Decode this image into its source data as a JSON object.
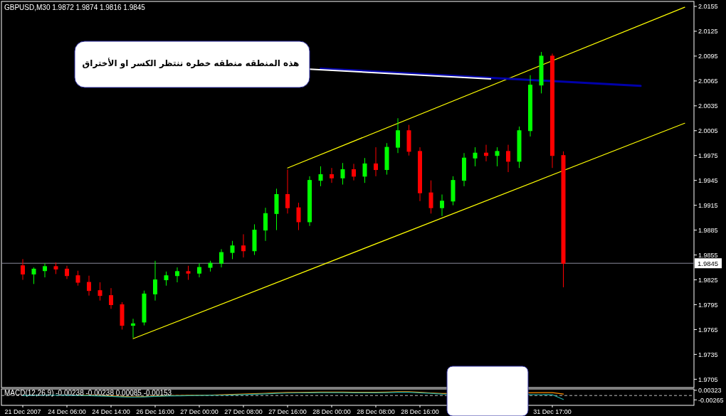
{
  "chart_data": [
    {
      "type": "candlestick",
      "title": "GBPUSD,M30 1.9872 1.9874 1.9816 1.9845",
      "tick_labels": "y",
      "categories": [
        null,
        null,
        null,
        null,
        null,
        null,
        null,
        null,
        null,
        null,
        null,
        null,
        null,
        null,
        null,
        null,
        null,
        null,
        null,
        null,
        null,
        null,
        null,
        null,
        null,
        null,
        null,
        null,
        null,
        null,
        null,
        null,
        null,
        null,
        null,
        null,
        null,
        null,
        null,
        null,
        null,
        null,
        null,
        null,
        null,
        null,
        null,
        null,
        null,
        null,
        null,
        null,
        null,
        null,
        null,
        null,
        null,
        null,
        null,
        null,
        null
      ],
      "ohlc": [
        [
          1.9842,
          1.985,
          1.9825,
          1.9832
        ],
        [
          1.9832,
          1.984,
          1.982,
          1.9838
        ],
        [
          1.9836,
          1.9845,
          1.9828,
          1.9841
        ],
        [
          1.9841,
          1.9846,
          1.9832,
          1.9838
        ],
        [
          1.9838,
          1.9842,
          1.9826,
          1.983
        ],
        [
          1.983,
          1.9836,
          1.9818,
          1.9822
        ],
        [
          1.9822,
          1.983,
          1.9806,
          1.9812
        ],
        [
          1.9812,
          1.9822,
          1.98,
          1.9806
        ],
        [
          1.9806,
          1.9815,
          1.979,
          1.9795
        ],
        [
          1.9795,
          1.9798,
          1.9765,
          1.977
        ],
        [
          1.977,
          1.9778,
          1.9755,
          1.9772
        ],
        [
          1.9774,
          1.9812,
          1.977,
          1.9808
        ],
        [
          1.9808,
          1.9848,
          1.98,
          1.9825
        ],
        [
          1.9825,
          1.9835,
          1.9818,
          1.983
        ],
        [
          1.983,
          1.984,
          1.9822,
          1.9835
        ],
        [
          1.9835,
          1.9842,
          1.9825,
          1.9833
        ],
        [
          1.9833,
          1.9845,
          1.9828,
          1.984
        ],
        [
          1.984,
          1.9848,
          1.9835,
          1.9845
        ],
        [
          1.9845,
          1.9862,
          1.984,
          1.9858
        ],
        [
          1.9858,
          1.9872,
          1.985,
          1.9866
        ],
        [
          1.9866,
          1.988,
          1.9852,
          1.986
        ],
        [
          1.986,
          1.9892,
          1.9855,
          1.9885
        ],
        [
          1.9885,
          1.9912,
          1.9872,
          1.9905
        ],
        [
          1.9905,
          1.9935,
          1.9885,
          1.9928
        ],
        [
          1.9928,
          1.9958,
          1.9905,
          1.9912
        ],
        [
          1.9912,
          1.9918,
          1.9885,
          1.9895
        ],
        [
          1.9895,
          1.995,
          1.989,
          1.9945
        ],
        [
          1.9945,
          1.9962,
          1.9938,
          1.9952
        ],
        [
          1.9952,
          1.996,
          1.9942,
          1.9948
        ],
        [
          1.9948,
          1.9966,
          1.994,
          1.9958
        ],
        [
          1.9958,
          1.9965,
          1.9945,
          1.995
        ],
        [
          1.995,
          1.9972,
          1.9942,
          1.9965
        ],
        [
          1.9965,
          1.9985,
          1.995,
          1.9958
        ],
        [
          1.9958,
          1.999,
          1.9952,
          1.9985
        ],
        [
          1.9985,
          2.002,
          1.9978,
          2.0005
        ],
        [
          2.0005,
          2.0012,
          1.9975,
          1.998
        ],
        [
          1.998,
          1.9985,
          1.992,
          1.993
        ],
        [
          1.993,
          1.9945,
          1.9905,
          1.9912
        ],
        [
          1.9912,
          1.9928,
          1.9902,
          1.992
        ],
        [
          1.992,
          1.995,
          1.9915,
          1.9945
        ],
        [
          1.9945,
          1.9978,
          1.9938,
          1.9972
        ],
        [
          1.9972,
          1.9985,
          1.9962,
          1.9978
        ],
        [
          1.9978,
          1.9988,
          1.9968,
          1.9975
        ],
        [
          1.9975,
          1.9985,
          1.9962,
          1.998
        ],
        [
          1.998,
          1.9988,
          1.9955,
          1.9968
        ],
        [
          1.9968,
          2.001,
          1.996,
          2.0005
        ],
        [
          2.0005,
          2.0072,
          1.9998,
          2.006
        ],
        [
          2.006,
          2.01,
          2.005,
          2.0095
        ],
        [
          2.0095,
          2.0098,
          1.996,
          1.9975
        ],
        [
          1.9975,
          1.998,
          1.9816,
          1.9845
        ],
        null,
        null,
        null,
        null,
        null,
        null,
        null,
        null,
        null,
        null,
        null
      ],
      "colors": [
        "#ff0000",
        "#00ff00",
        "#00ff00",
        "#ff0000",
        "#ff0000",
        "#ff0000",
        "#ff0000",
        "#ff0000",
        "#ff0000",
        "#ff0000",
        "#00ff00",
        "#00ff00",
        "#00ff00",
        "#00ff00",
        "#00ff00",
        "#ff0000",
        "#00ff00",
        "#00ff00",
        "#00ff00",
        "#00ff00",
        "#ff0000",
        "#00ff00",
        "#00ff00",
        "#00ff00",
        "#ff0000",
        "#ff0000",
        "#00ff00",
        "#00ff00",
        "#ff0000",
        "#00ff00",
        "#ff0000",
        "#00ff00",
        "#ff0000",
        "#00ff00",
        "#00ff00",
        "#ff0000",
        "#ff0000",
        "#ff0000",
        "#00ff00",
        "#00ff00",
        "#00ff00",
        "#00ff00",
        "#ff0000",
        "#00ff00",
        "#ff0000",
        "#00ff00",
        "#00ff00",
        "#00ff00",
        "#ff0000",
        "#ff0000",
        null,
        null,
        null,
        null,
        null,
        null,
        null,
        null,
        null,
        null,
        null
      ],
      "series": [
        {
          "type": "line",
          "color": "#ffff00",
          "values": [
            null,
            null,
            null,
            null,
            null,
            null,
            null,
            null,
            null,
            null,
            1.9754,
            null,
            null,
            null,
            null,
            null,
            null,
            null,
            null,
            null,
            null,
            null,
            null,
            null,
            null,
            null,
            null,
            null,
            null,
            null,
            null,
            null,
            null,
            null,
            null,
            null,
            null,
            null,
            null,
            null,
            null,
            null,
            null,
            null,
            null,
            null,
            null,
            null,
            null,
            null,
            null,
            null,
            null,
            null,
            null,
            null,
            null,
            null,
            null,
            null,
            2.0014
          ]
        },
        {
          "type": "line",
          "color": "#ffff00",
          "values": [
            null,
            null,
            null,
            null,
            null,
            null,
            null,
            null,
            null,
            null,
            null,
            null,
            null,
            null,
            null,
            null,
            null,
            null,
            null,
            null,
            null,
            null,
            null,
            null,
            1.996,
            null,
            null,
            null,
            null,
            null,
            null,
            null,
            null,
            null,
            null,
            null,
            null,
            null,
            null,
            null,
            null,
            null,
            null,
            null,
            null,
            null,
            null,
            null,
            null,
            null,
            null,
            null,
            null,
            null,
            null,
            null,
            null,
            null,
            null,
            null,
            2.0154
          ]
        },
        {
          "type": "line",
          "color": "#0000aa",
          "values": [
            null,
            null,
            null,
            null,
            null,
            null,
            null,
            null,
            null,
            null,
            null,
            null,
            null,
            null,
            null,
            null,
            null,
            null,
            null,
            null,
            null,
            null,
            null,
            null,
            null,
            null,
            null,
            2.008,
            null,
            null,
            null,
            null,
            null,
            null,
            null,
            null,
            null,
            null,
            null,
            null,
            null,
            null,
            null,
            null,
            null,
            null,
            null,
            null,
            null,
            null,
            null,
            null,
            null,
            null,
            null,
            null,
            2.0059,
            null,
            null,
            null,
            null
          ]
        }
      ],
      "ylim": [
        1.9695,
        2.0161
      ],
      "yticks": [
        2.0155,
        2.0125,
        2.0095,
        2.0065,
        2.0035,
        2.0005,
        1.9975,
        1.9945,
        1.9915,
        1.9885,
        1.9855,
        1.9825,
        1.9795,
        1.9765,
        1.9735,
        1.9705
      ],
      "ref_lines": [
        {
          "axis": "y",
          "value": 1.9845,
          "label": "1.9845",
          "color": "#8c8c9c"
        }
      ],
      "annotations": [
        "هذه المنطقه منطقه خطره ننتظر الكسر او الأختراق"
      ]
    },
    {
      "type": "line",
      "title": "MACD(12,26,9) -0.00238 -0.00238 0.00085 -0.00153",
      "categories": [
        "21 Dec 2007",
        null,
        null,
        null,
        "24 Dec 06:00",
        null,
        null,
        null,
        "24 Dec 14:00",
        null,
        null,
        null,
        "26 Dec 16:00",
        null,
        null,
        null,
        "27 Dec 00:00",
        null,
        null,
        null,
        "27 Dec 08:00",
        null,
        null,
        null,
        "27 Dec 16:00",
        null,
        null,
        null,
        "28 Dec 00:00",
        null,
        null,
        null,
        "28 Dec 08:00",
        null,
        null,
        null,
        "28 Dec 16:00",
        null,
        null,
        null,
        null,
        null,
        null,
        null,
        null,
        null,
        null,
        null,
        "31 Dec 17:00",
        null
      ],
      "series": [
        {
          "color": "#ff8c00",
          "values": [
            null,
            null,
            null,
            null,
            null,
            0.0002,
            0.0001,
            0,
            -0.0002,
            -0.0005,
            -0.0008,
            -0.0006,
            -0.0003,
            null,
            0,
            0.0001,
            0.0002,
            0.0003,
            0.0005,
            0.0007,
            0.0009,
            0.0011,
            0.0014,
            0.0017,
            0.0019,
            0.0019,
            0.002,
            0.0021,
            0.0021,
            0.0021,
            0.002,
            0.002,
            0.002,
            0.0021,
            0.0023,
            0.0023,
            0.002,
            0.0016,
            0.0012,
            null,
            null,
            null,
            null,
            null,
            null,
            null,
            null,
            null,
            0.0018,
            0.0009
          ]
        },
        {
          "color": "#20b2aa",
          "values": [
            0,
            0.0001,
            0.0002,
            0.0002,
            0.0001,
            0,
            -0.0001,
            -0.0003,
            -0.0005,
            -0.0008,
            -0.001,
            -0.0008,
            -0.0005,
            -0.0003,
            -0.0002,
            -0.0001,
            0,
            0.0001,
            0.0002,
            0.0004,
            0.0006,
            0.0008,
            0.001,
            0.0013,
            0.0015,
            0.0016,
            0.0017,
            0.0018,
            0.0018,
            0.0018,
            0.0017,
            0.0017,
            0.0017,
            0.0018,
            0.002,
            0.002,
            0.0017,
            0.0013,
            0.0009,
            null,
            null,
            null,
            null,
            null,
            null,
            null,
            null,
            null,
            0.0005,
            -0.0024
          ]
        }
      ],
      "ylim": [
        -0.006,
        0.004
      ],
      "yticks": [
        0.00323,
        {
          "value": -0.00265,
          "label": "-0.00265"
        }
      ],
      "ref_lines": [
        {
          "axis": "y",
          "value": 0,
          "color": "#c0c0c0",
          "line_style": "dashed"
        }
      ]
    }
  ]
}
